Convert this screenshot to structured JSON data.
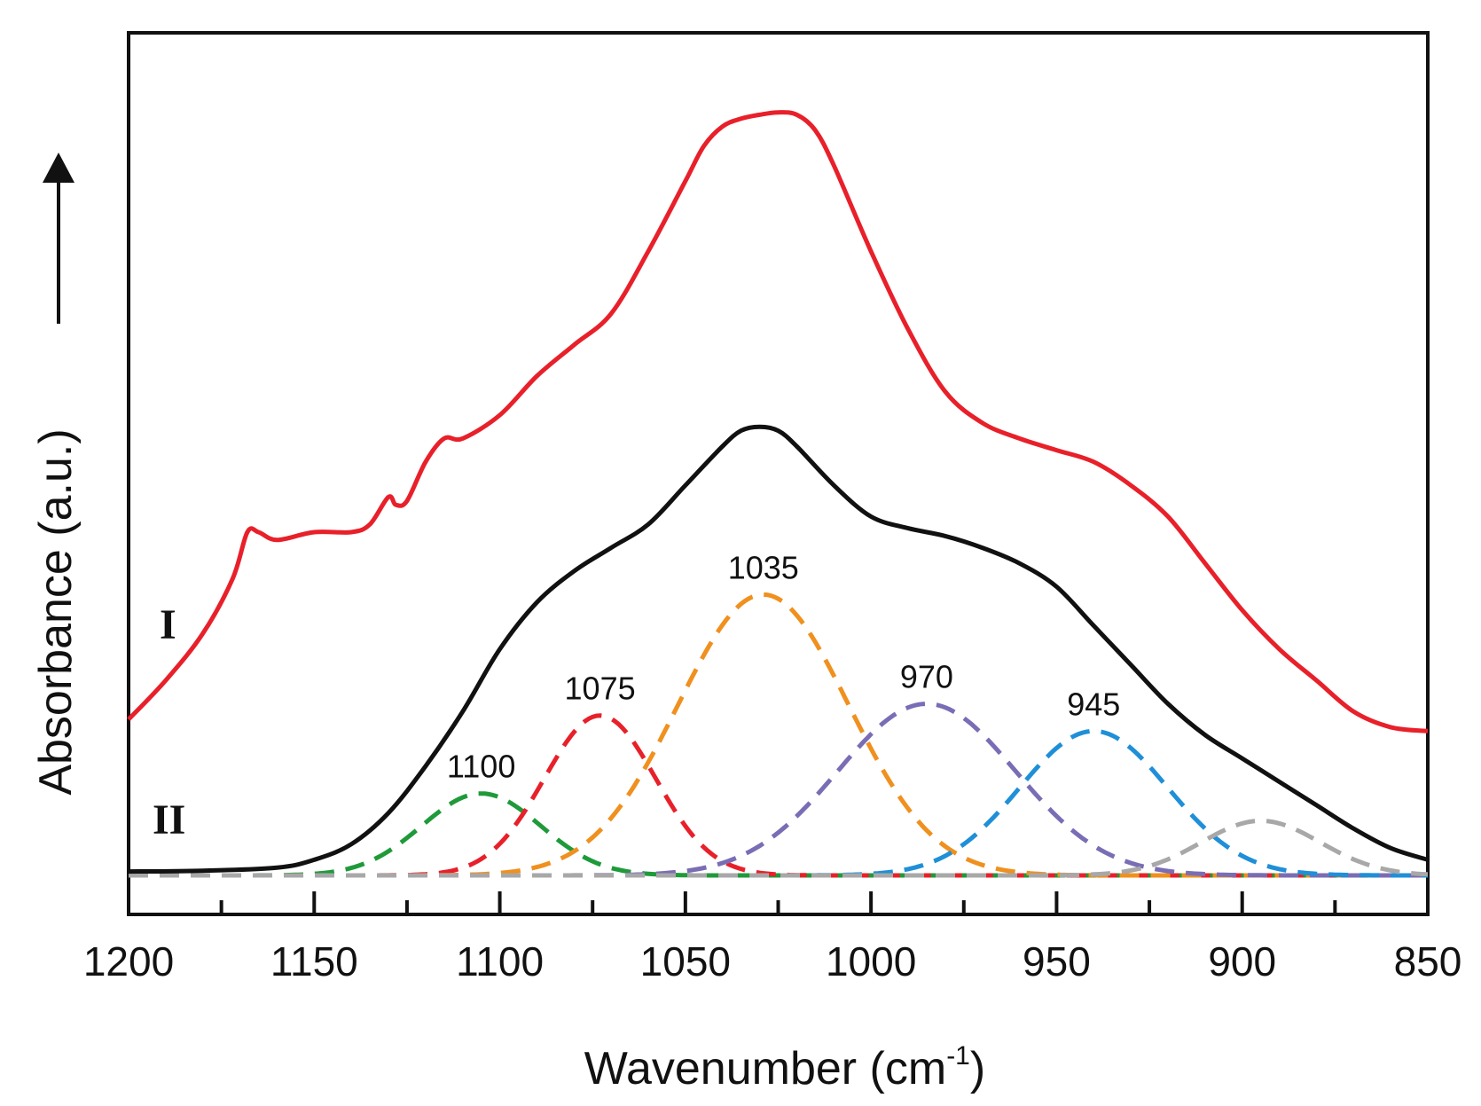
{
  "chart_data": {
    "type": "line",
    "title": "",
    "xlabel": "Wavenumber (cm",
    "xlabel_superscript": "-1",
    "xlabel_suffix": ")",
    "ylabel": "Absorbance (a.u.)",
    "xlim": [
      1200,
      850
    ],
    "ylim": [
      -0.5,
      10.8
    ],
    "x_ticks": [
      1200,
      1150,
      1100,
      1050,
      1000,
      950,
      900,
      850
    ],
    "x_tick_labels": [
      "1200",
      "1150",
      "1100",
      "1050",
      "1000",
      "950",
      "900",
      "850"
    ],
    "grid": false,
    "trace_labels": {
      "I": "I",
      "II": "II"
    },
    "spectrum_I": {
      "name": "I",
      "color": "#e8202a",
      "x": [
        1200,
        1190,
        1180,
        1172,
        1168,
        1165,
        1160,
        1150,
        1140,
        1135,
        1130,
        1128,
        1125,
        1120,
        1115,
        1110,
        1100,
        1090,
        1080,
        1070,
        1060,
        1050,
        1045,
        1040,
        1035,
        1030,
        1025,
        1020,
        1015,
        1010,
        1000,
        990,
        980,
        970,
        960,
        950,
        940,
        930,
        920,
        910,
        900,
        890,
        880,
        870,
        860,
        850
      ],
      "y": [
        2.0,
        2.5,
        3.1,
        3.8,
        4.4,
        4.4,
        4.3,
        4.4,
        4.4,
        4.5,
        4.85,
        4.75,
        4.8,
        5.3,
        5.6,
        5.6,
        5.9,
        6.4,
        6.8,
        7.2,
        8.0,
        8.9,
        9.35,
        9.6,
        9.7,
        9.75,
        9.78,
        9.75,
        9.55,
        9.1,
        8.0,
        7.0,
        6.2,
        5.8,
        5.6,
        5.45,
        5.3,
        5.0,
        4.6,
        4.0,
        3.4,
        2.9,
        2.5,
        2.1,
        1.9,
        1.85
      ]
    },
    "spectrum_II": {
      "name": "II",
      "color": "#111111",
      "x": [
        1200,
        1180,
        1160,
        1150,
        1140,
        1130,
        1120,
        1110,
        1100,
        1090,
        1080,
        1070,
        1060,
        1050,
        1040,
        1035,
        1030,
        1025,
        1020,
        1010,
        1000,
        990,
        980,
        970,
        960,
        950,
        940,
        930,
        920,
        910,
        900,
        890,
        880,
        870,
        860,
        850
      ],
      "y": [
        0.05,
        0.06,
        0.1,
        0.2,
        0.4,
        0.8,
        1.4,
        2.1,
        2.9,
        3.5,
        3.9,
        4.2,
        4.5,
        5.0,
        5.5,
        5.7,
        5.75,
        5.7,
        5.5,
        5.0,
        4.6,
        4.45,
        4.35,
        4.2,
        4.0,
        3.7,
        3.2,
        2.7,
        2.2,
        1.8,
        1.5,
        1.2,
        0.9,
        0.6,
        0.35,
        0.2
      ]
    },
    "fitted_peaks": [
      {
        "label": "1100",
        "center": 1105,
        "height": 1.05,
        "width": 16,
        "color": "#1f9a3a"
      },
      {
        "label": "1075",
        "center": 1073,
        "height": 2.05,
        "width": 15,
        "color": "#e8202a"
      },
      {
        "label": "1035",
        "center": 1029,
        "height": 3.6,
        "width": 23,
        "color": "#f0901e"
      },
      {
        "label": "970",
        "center": 985,
        "height": 2.2,
        "width": 24,
        "color": "#7a6db5"
      },
      {
        "label": "945",
        "center": 940,
        "height": 1.85,
        "width": 20,
        "color": "#1f8fd8"
      },
      {
        "label": "",
        "center": 895,
        "height": 0.7,
        "width": 16,
        "color": "#a8a8a8"
      }
    ]
  }
}
